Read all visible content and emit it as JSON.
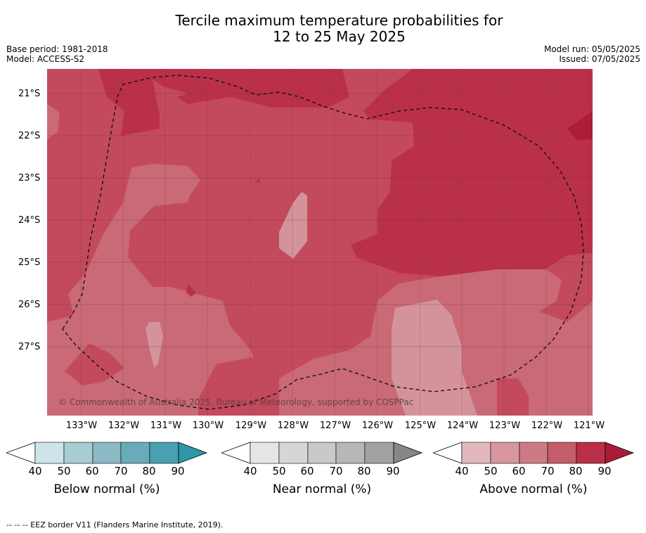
{
  "title_line1": "Tercile maximum temperature probabilities for",
  "title_line2": "12 to 25 May 2025",
  "base_period": "Base period: 1981-2018",
  "model": "Model: ACCESS-S2",
  "model_run": "Model run: 05/05/2025",
  "issued": "Issued: 07/05/2025",
  "latitude_labels": [
    "21°S",
    "22°S",
    "23°S",
    "24°S",
    "25°S",
    "26°S",
    "27°S"
  ],
  "longitude_labels": [
    "133°W",
    "132°W",
    "131°W",
    "130°W",
    "129°W",
    "128°W",
    "127°W",
    "126°W",
    "125°W",
    "124°W",
    "123°W",
    "122°W",
    "121°W"
  ],
  "copyright": "© Commonwealth of Australia 2025, Bureau of Meteorology, supported by COSPPac",
  "colorbars": [
    {
      "title": "Below normal (%)",
      "ticks": [
        "40",
        "50",
        "60",
        "70",
        "80",
        "90"
      ],
      "colors": [
        "#cde4e9",
        "#a9cbd2",
        "#8bbac5",
        "#6aabb9",
        "#48a0b0",
        "#2e97a8"
      ]
    },
    {
      "title": "Near normal (%)",
      "ticks": [
        "40",
        "50",
        "60",
        "70",
        "80",
        "90"
      ],
      "colors": [
        "#e5e5e5",
        "#d6d6d6",
        "#c9c9c9",
        "#b7b7b7",
        "#a1a1a1",
        "#878787"
      ]
    },
    {
      "title": "Above normal (%)",
      "ticks": [
        "40",
        "50",
        "60",
        "70",
        "80",
        "90"
      ],
      "colors": [
        "#e2b8be",
        "#d8969f",
        "#ce7a84",
        "#c45c69",
        "#b92f48",
        "#a91c37"
      ]
    }
  ],
  "map_colors": {
    "above_50_60": "#d4939b",
    "above_60_70": "#c96a76",
    "above_70_80": "#c34a5c",
    "above_80_90": "#bb3049",
    "above_90": "#ae1d36",
    "above_40_50": "#dda5ab"
  },
  "footer": "--  --  -- EEZ border V11 (Flanders Marine Institute, 2019)."
}
